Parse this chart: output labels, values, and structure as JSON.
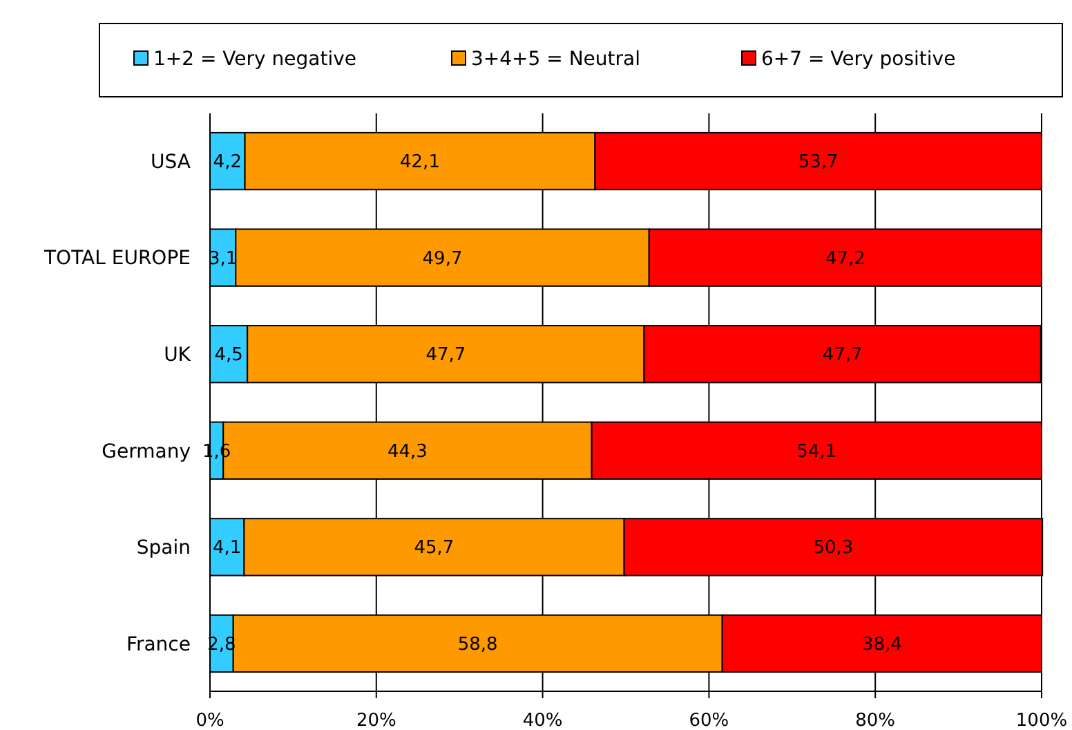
{
  "chart_data": {
    "type": "bar",
    "orientation": "horizontal",
    "stacked": true,
    "categories": [
      "USA",
      "TOTAL EUROPE",
      "UK",
      "Germany",
      "Spain",
      "France"
    ],
    "series": [
      {
        "name": "1+2 = Very negative",
        "color": "#33ccff",
        "values": [
          4.2,
          3.1,
          4.5,
          1.6,
          4.1,
          2.8
        ],
        "value_labels": [
          "4,2",
          "3,1",
          "4,5",
          "1,6",
          "4,1",
          "2,8"
        ]
      },
      {
        "name": "3+4+5 = Neutral",
        "color": "#ff9900",
        "values": [
          42.1,
          49.7,
          47.7,
          44.3,
          45.7,
          58.8
        ],
        "value_labels": [
          "42,1",
          "49,7",
          "47,7",
          "44,3",
          "45,7",
          "58,8"
        ]
      },
      {
        "name": "6+7 = Very positive",
        "color": "#ff0000",
        "values": [
          53.7,
          47.2,
          47.7,
          54.1,
          50.3,
          38.4
        ],
        "value_labels": [
          "53,7",
          "47,2",
          "47,7",
          "54,1",
          "50,3",
          "38,4"
        ]
      }
    ],
    "xlim": [
      0,
      100
    ],
    "xticks": [
      {
        "value": 0,
        "label": "0%"
      },
      {
        "value": 20,
        "label": "20%"
      },
      {
        "value": 40,
        "label": "40%"
      },
      {
        "value": 60,
        "label": "60%"
      },
      {
        "value": 80,
        "label": "80%"
      },
      {
        "value": 100,
        "label": "100%"
      }
    ],
    "grid": "x",
    "legend": "top"
  }
}
